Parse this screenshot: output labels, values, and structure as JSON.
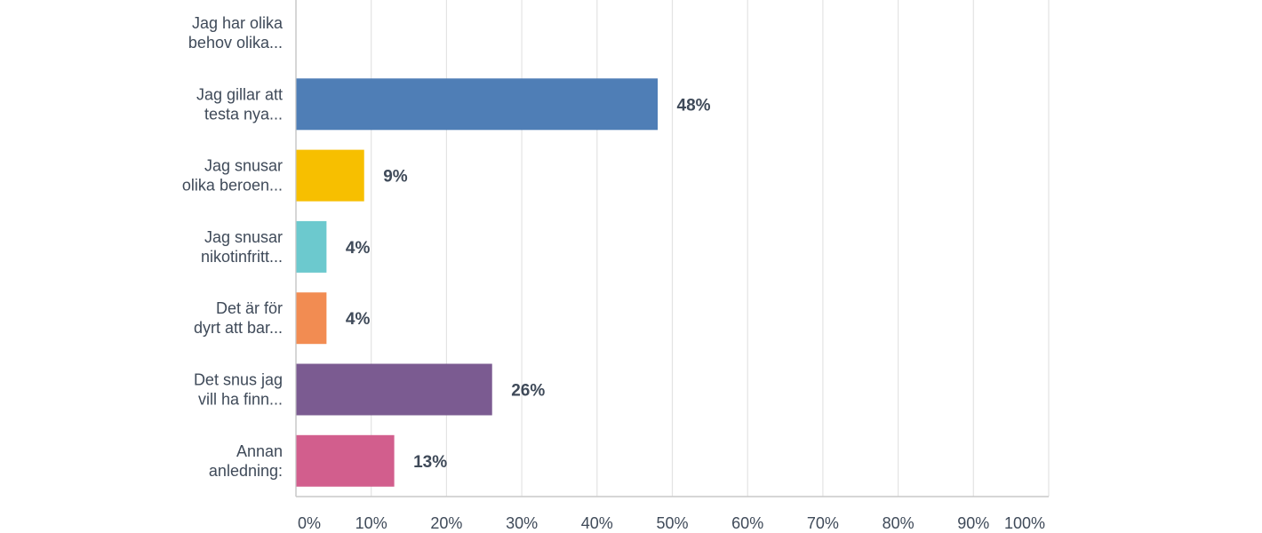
{
  "chart_data": {
    "type": "bar",
    "orientation": "horizontal",
    "categories": [
      [
        "Jag har olika",
        "behov olika..."
      ],
      [
        "Jag gillar att",
        "testa nya..."
      ],
      [
        "Jag snusar",
        "olika beroen..."
      ],
      [
        "Jag snusar",
        "nikotinfritt..."
      ],
      [
        "Det är för",
        "dyrt att bar..."
      ],
      [
        "Det snus jag",
        "vill ha finn..."
      ],
      [
        "Annan",
        "anledning:"
      ]
    ],
    "values": [
      0,
      48,
      9,
      4,
      4,
      26,
      13
    ],
    "data_labels": [
      "",
      "48%",
      "9%",
      "4%",
      "4%",
      "26%",
      "13%"
    ],
    "colors": [
      "#4f7eb6",
      "#4f7eb6",
      "#f7bf00",
      "#6cc9ce",
      "#f28c52",
      "#7b5b91",
      "#d25e8d"
    ],
    "xlim": [
      0,
      100
    ],
    "x_ticks": [
      "0%",
      "10%",
      "20%",
      "30%",
      "40%",
      "50%",
      "60%",
      "70%",
      "80%",
      "90%",
      "100%"
    ],
    "grid": true
  }
}
